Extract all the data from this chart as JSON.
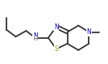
{
  "bg_color": "#ffffff",
  "bond_color": "#333333",
  "atom_colors": {
    "N": "#0000bb",
    "S": "#999900",
    "H": "#333333"
  },
  "bond_width": 1.3,
  "figsize": [
    1.34,
    0.79
  ],
  "dpi": 100
}
